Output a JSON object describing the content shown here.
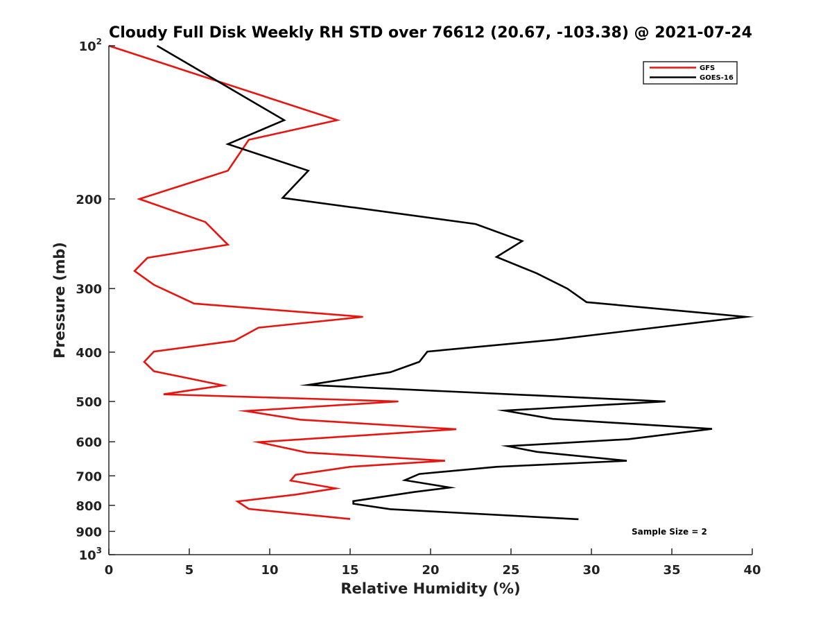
{
  "chart_data": {
    "type": "line",
    "title": "Cloudy Full Disk Weekly RH STD over 76612 (20.67, -103.38) @ 2021-07-24",
    "xlabel": "Relative Humidity (%)",
    "ylabel": "Pressure (mb)",
    "xlim": [
      0,
      40
    ],
    "ylim": [
      100,
      1000
    ],
    "yscale": "log",
    "y_reversed": true,
    "xticks": [
      0,
      5,
      10,
      15,
      20,
      25,
      30,
      35,
      40
    ],
    "xtick_labels": [
      "0",
      "5",
      "10",
      "15",
      "20",
      "25",
      "30",
      "35",
      "40"
    ],
    "yticks": [
      100,
      200,
      300,
      400,
      500,
      600,
      700,
      800,
      900,
      1000
    ],
    "ytick_labels": [
      {
        "base": "10",
        "exp": "2"
      },
      {
        "base": "200",
        "exp": ""
      },
      {
        "base": "300",
        "exp": ""
      },
      {
        "base": "400",
        "exp": ""
      },
      {
        "base": "500",
        "exp": ""
      },
      {
        "base": "600",
        "exp": ""
      },
      {
        "base": "700",
        "exp": ""
      },
      {
        "base": "800",
        "exp": ""
      },
      {
        "base": "900",
        "exp": ""
      },
      {
        "base": "10",
        "exp": "3"
      }
    ],
    "grid": false,
    "legend_position": "top-right",
    "annotation": "Sample Size = 2",
    "series": [
      {
        "name": "GFS",
        "color": "#e8140f",
        "x": [
          0.0,
          14.2,
          8.7,
          7.4,
          1.9,
          6.0,
          7.4,
          2.4,
          1.6,
          2.8,
          5.3,
          15.8,
          9.3,
          7.8,
          2.8,
          2.2,
          2.8,
          7.1,
          3.4,
          18.0,
          8.5,
          11.9,
          21.6,
          9.3,
          12.3,
          20.9,
          15.0,
          11.6,
          11.3,
          14.1,
          11.6,
          8.0,
          8.7,
          15.0
        ],
        "y": [
          100,
          140,
          153,
          176,
          200,
          222,
          246,
          261,
          277,
          295,
          321,
          341,
          358,
          380,
          399,
          418,
          436,
          465,
          484,
          500,
          522,
          543,
          567,
          601,
          630,
          654,
          672,
          697,
          715,
          741,
          762,
          786,
          813,
          851
        ]
      },
      {
        "name": "GOES-16",
        "color": "#000000",
        "x": [
          3.0,
          10.9,
          7.4,
          12.4,
          10.8,
          22.8,
          25.7,
          24.1,
          26.6,
          28.5,
          29.7,
          39.6,
          27.7,
          19.8,
          19.3,
          17.5,
          12.4,
          34.6,
          24.6,
          27.6,
          37.5,
          32.3,
          24.8,
          26.6,
          32.2,
          24.1,
          19.3,
          18.4,
          21.2,
          19.0,
          15.2,
          15.2,
          17.5,
          29.2
        ],
        "y": [
          100,
          140,
          156,
          176,
          199,
          224,
          242,
          260,
          280,
          300,
          319,
          341,
          378,
          399,
          418,
          438,
          464,
          500,
          521,
          541,
          566,
          593,
          612,
          628,
          654,
          672,
          694,
          714,
          738,
          753,
          785,
          794,
          814,
          852
        ]
      }
    ]
  }
}
